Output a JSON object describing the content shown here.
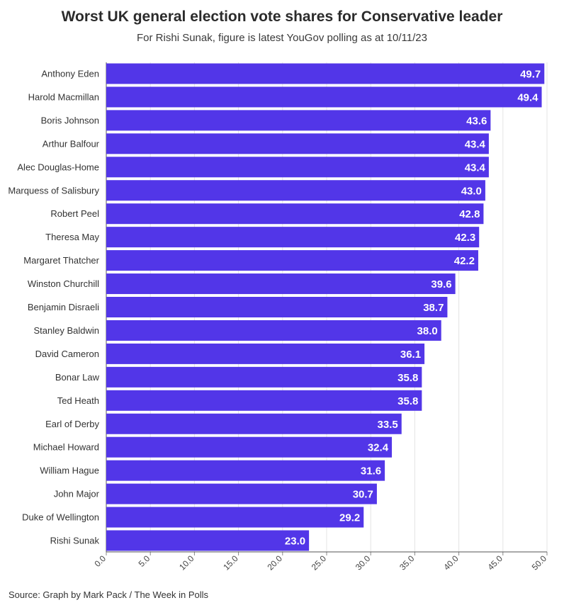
{
  "title": "Worst UK general election vote shares for Conservative leader",
  "subtitle": "For Rishi Sunak, figure is latest YouGov polling as at 10/11/23",
  "source": "Source: Graph by Mark Pack / The Week in Polls",
  "chart_data": {
    "type": "bar",
    "orientation": "horizontal",
    "categories": [
      "Anthony Eden",
      "Harold Macmillan",
      "Boris Johnson",
      "Arthur Balfour",
      "Alec Douglas-Home",
      "Marquess of Salisbury",
      "Robert Peel",
      "Theresa May",
      "Margaret Thatcher",
      "Winston Churchill",
      "Benjamin Disraeli",
      "Stanley Baldwin",
      "David Cameron",
      "Bonar Law",
      "Ted Heath",
      "Earl of Derby",
      "Michael Howard",
      "William Hague",
      "John Major",
      "Duke of Wellington",
      "Rishi Sunak"
    ],
    "values": [
      49.7,
      49.4,
      43.6,
      43.4,
      43.4,
      43.0,
      42.8,
      42.3,
      42.2,
      39.6,
      38.7,
      38.0,
      36.1,
      35.8,
      35.8,
      33.5,
      32.4,
      31.6,
      30.7,
      29.2,
      23.0
    ],
    "value_labels": [
      "49.7",
      "49.4",
      "43.6",
      "43.4",
      "43.4",
      "43.0",
      "42.8",
      "42.3",
      "42.2",
      "39.6",
      "38.7",
      "38.0",
      "36.1",
      "35.8",
      "35.8",
      "33.5",
      "32.4",
      "31.6",
      "30.7",
      "29.2",
      "23.0"
    ],
    "xticks": [
      "0.0",
      "5.0",
      "10.0",
      "15.0",
      "20.0",
      "25.0",
      "30.0",
      "35.0",
      "40.0",
      "45.0",
      "50.0"
    ],
    "xlim": [
      0,
      50
    ],
    "grid": true,
    "bar_color": "#5236e8"
  }
}
